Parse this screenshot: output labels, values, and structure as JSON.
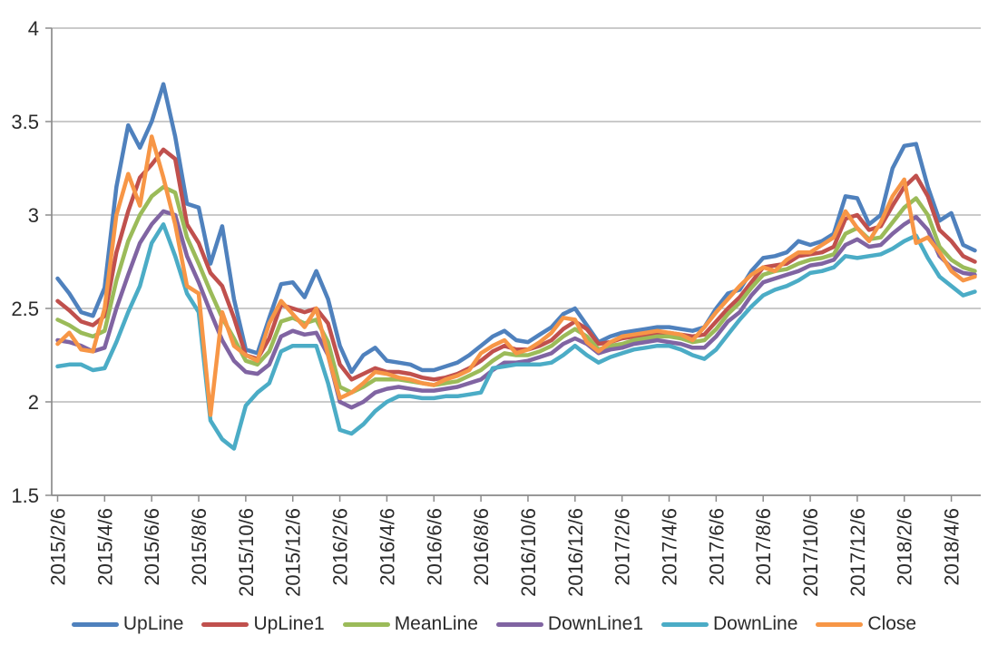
{
  "chart_data": {
    "type": "line",
    "title": "",
    "xlabel": "",
    "ylabel": "",
    "grid": "horizontal",
    "legend_position": "bottom",
    "y_axis": {
      "min": 1.5,
      "max": 4,
      "step": 0.5,
      "tick_labels": [
        "4",
        "3.5",
        "3",
        "2.5",
        "2",
        "1.5"
      ]
    },
    "x_tick_every": 4,
    "x_tick_labels": [
      "2015/2/6",
      "2015/4/6",
      "2015/6/6",
      "2015/8/6",
      "2015/10/6",
      "2015/12/6",
      "2016/2/6",
      "2016/4/6",
      "2016/6/6",
      "2016/8/6",
      "2016/10/6",
      "2016/12/6",
      "2017/2/6",
      "2017/4/6",
      "2017/6/6",
      "2017/8/6",
      "2017/10/6",
      "2017/12/6",
      "2018/2/6",
      "2018/4/6"
    ],
    "x": [
      "2015/2/6",
      "2015/2/21",
      "2015/3/6",
      "2015/3/21",
      "2015/4/6",
      "2015/4/21",
      "2015/5/6",
      "2015/5/21",
      "2015/6/6",
      "2015/6/21",
      "2015/7/6",
      "2015/7/21",
      "2015/8/6",
      "2015/8/21",
      "2015/9/6",
      "2015/9/21",
      "2015/10/6",
      "2015/10/21",
      "2015/11/6",
      "2015/11/21",
      "2015/12/6",
      "2015/12/21",
      "2016/1/6",
      "2016/1/21",
      "2016/2/6",
      "2016/2/21",
      "2016/3/6",
      "2016/3/21",
      "2016/4/6",
      "2016/4/21",
      "2016/5/6",
      "2016/5/21",
      "2016/6/6",
      "2016/6/21",
      "2016/7/6",
      "2016/7/21",
      "2016/8/6",
      "2016/8/21",
      "2016/9/6",
      "2016/9/21",
      "2016/10/6",
      "2016/10/21",
      "2016/11/6",
      "2016/11/21",
      "2016/12/6",
      "2016/12/21",
      "2017/1/6",
      "2017/1/21",
      "2017/2/6",
      "2017/2/21",
      "2017/3/6",
      "2017/3/21",
      "2017/4/6",
      "2017/4/21",
      "2017/5/6",
      "2017/5/21",
      "2017/6/6",
      "2017/6/21",
      "2017/7/6",
      "2017/7/21",
      "2017/8/6",
      "2017/8/21",
      "2017/9/6",
      "2017/9/21",
      "2017/10/6",
      "2017/10/21",
      "2017/11/6",
      "2017/11/21",
      "2017/12/6",
      "2017/12/21",
      "2018/1/6",
      "2018/1/21",
      "2018/2/6",
      "2018/2/21",
      "2018/3/6",
      "2018/3/21",
      "2018/4/6",
      "2018/4/21",
      "2018/5/6"
    ],
    "series": [
      {
        "name": "UpLine",
        "color": "#4F81BD",
        "values": [
          2.66,
          2.58,
          2.48,
          2.46,
          2.61,
          3.15,
          3.48,
          3.36,
          3.5,
          3.7,
          3.42,
          3.06,
          3.04,
          2.74,
          2.94,
          2.55,
          2.28,
          2.26,
          2.45,
          2.63,
          2.64,
          2.56,
          2.7,
          2.55,
          2.3,
          2.16,
          2.25,
          2.29,
          2.22,
          2.21,
          2.2,
          2.17,
          2.17,
          2.19,
          2.21,
          2.25,
          2.3,
          2.35,
          2.38,
          2.33,
          2.32,
          2.36,
          2.4,
          2.47,
          2.5,
          2.41,
          2.32,
          2.35,
          2.37,
          2.38,
          2.39,
          2.4,
          2.4,
          2.39,
          2.38,
          2.4,
          2.5,
          2.58,
          2.6,
          2.7,
          2.77,
          2.78,
          2.8,
          2.86,
          2.84,
          2.86,
          2.9,
          3.1,
          3.09,
          2.95,
          3.0,
          3.25,
          3.37,
          3.38,
          3.15,
          2.97,
          3.01,
          2.84,
          2.81
        ]
      },
      {
        "name": "UpLine1",
        "color": "#C0504D",
        "values": [
          2.54,
          2.49,
          2.43,
          2.41,
          2.46,
          2.8,
          3.02,
          3.2,
          3.27,
          3.35,
          3.3,
          2.95,
          2.85,
          2.69,
          2.62,
          2.45,
          2.25,
          2.23,
          2.34,
          2.52,
          2.5,
          2.48,
          2.5,
          2.42,
          2.2,
          2.12,
          2.15,
          2.18,
          2.16,
          2.16,
          2.15,
          2.13,
          2.12,
          2.13,
          2.15,
          2.18,
          2.22,
          2.27,
          2.3,
          2.28,
          2.28,
          2.3,
          2.33,
          2.39,
          2.43,
          2.39,
          2.31,
          2.32,
          2.34,
          2.35,
          2.36,
          2.37,
          2.37,
          2.36,
          2.35,
          2.36,
          2.43,
          2.5,
          2.56,
          2.64,
          2.72,
          2.73,
          2.74,
          2.78,
          2.79,
          2.8,
          2.83,
          2.98,
          3.0,
          2.92,
          2.94,
          3.05,
          3.15,
          3.21,
          3.1,
          2.92,
          2.86,
          2.78,
          2.75
        ]
      },
      {
        "name": "MeanLine",
        "color": "#9BBB59",
        "values": [
          2.44,
          2.41,
          2.37,
          2.35,
          2.38,
          2.65,
          2.86,
          3.0,
          3.1,
          3.15,
          3.12,
          2.88,
          2.74,
          2.59,
          2.45,
          2.34,
          2.22,
          2.2,
          2.27,
          2.43,
          2.45,
          2.42,
          2.44,
          2.32,
          2.08,
          2.05,
          2.08,
          2.12,
          2.12,
          2.12,
          2.11,
          2.1,
          2.09,
          2.1,
          2.11,
          2.14,
          2.17,
          2.22,
          2.26,
          2.25,
          2.25,
          2.27,
          2.3,
          2.35,
          2.39,
          2.35,
          2.28,
          2.3,
          2.31,
          2.33,
          2.34,
          2.35,
          2.35,
          2.34,
          2.32,
          2.33,
          2.39,
          2.47,
          2.53,
          2.61,
          2.68,
          2.7,
          2.71,
          2.74,
          2.76,
          2.77,
          2.79,
          2.9,
          2.93,
          2.87,
          2.88,
          2.96,
          3.04,
          3.09,
          3.0,
          2.83,
          2.76,
          2.72,
          2.7
        ]
      },
      {
        "name": "DownLine1",
        "color": "#8064A2",
        "values": [
          2.33,
          2.32,
          2.3,
          2.27,
          2.29,
          2.5,
          2.68,
          2.85,
          2.95,
          3.02,
          3.0,
          2.78,
          2.64,
          2.48,
          2.33,
          2.22,
          2.16,
          2.15,
          2.2,
          2.35,
          2.38,
          2.36,
          2.37,
          2.25,
          2.0,
          1.97,
          2.0,
          2.05,
          2.07,
          2.08,
          2.07,
          2.06,
          2.06,
          2.07,
          2.08,
          2.1,
          2.12,
          2.17,
          2.21,
          2.21,
          2.22,
          2.24,
          2.26,
          2.31,
          2.34,
          2.31,
          2.26,
          2.28,
          2.29,
          2.31,
          2.32,
          2.33,
          2.32,
          2.31,
          2.29,
          2.29,
          2.35,
          2.43,
          2.48,
          2.57,
          2.64,
          2.66,
          2.68,
          2.7,
          2.73,
          2.74,
          2.76,
          2.84,
          2.87,
          2.83,
          2.84,
          2.9,
          2.95,
          2.99,
          2.92,
          2.78,
          2.72,
          2.69,
          2.68
        ]
      },
      {
        "name": "DownLine",
        "color": "#4BACC6",
        "values": [
          2.19,
          2.2,
          2.2,
          2.17,
          2.18,
          2.32,
          2.48,
          2.62,
          2.85,
          2.95,
          2.78,
          2.58,
          2.48,
          1.9,
          1.8,
          1.75,
          1.98,
          2.05,
          2.1,
          2.27,
          2.3,
          2.3,
          2.3,
          2.1,
          1.85,
          1.83,
          1.88,
          1.95,
          2.0,
          2.03,
          2.03,
          2.02,
          2.02,
          2.03,
          2.03,
          2.04,
          2.05,
          2.18,
          2.19,
          2.2,
          2.2,
          2.2,
          2.21,
          2.25,
          2.3,
          2.25,
          2.21,
          2.24,
          2.26,
          2.28,
          2.29,
          2.3,
          2.3,
          2.28,
          2.25,
          2.23,
          2.28,
          2.36,
          2.44,
          2.51,
          2.57,
          2.6,
          2.62,
          2.65,
          2.69,
          2.7,
          2.72,
          2.78,
          2.77,
          2.78,
          2.79,
          2.82,
          2.86,
          2.89,
          2.77,
          2.67,
          2.62,
          2.57,
          2.59
        ]
      },
      {
        "name": "Close",
        "color": "#F79646",
        "values": [
          2.31,
          2.37,
          2.28,
          2.27,
          2.5,
          3.0,
          3.22,
          3.05,
          3.42,
          3.2,
          2.95,
          2.62,
          2.58,
          1.93,
          2.48,
          2.3,
          2.25,
          2.22,
          2.42,
          2.54,
          2.47,
          2.4,
          2.5,
          2.25,
          2.02,
          2.05,
          2.1,
          2.16,
          2.15,
          2.13,
          2.12,
          2.1,
          2.09,
          2.12,
          2.14,
          2.17,
          2.26,
          2.3,
          2.33,
          2.26,
          2.28,
          2.32,
          2.37,
          2.45,
          2.44,
          2.32,
          2.27,
          2.32,
          2.35,
          2.36,
          2.37,
          2.38,
          2.37,
          2.36,
          2.33,
          2.4,
          2.48,
          2.55,
          2.62,
          2.68,
          2.72,
          2.7,
          2.76,
          2.8,
          2.8,
          2.84,
          2.88,
          3.02,
          2.93,
          2.86,
          2.96,
          3.1,
          3.19,
          2.85,
          2.88,
          2.8,
          2.7,
          2.65,
          2.67
        ]
      }
    ],
    "legend": [
      "UpLine",
      "UpLine1",
      "MeanLine",
      "DownLine1",
      "DownLine",
      "Close"
    ]
  },
  "styles": {
    "grid_color": "#ababab",
    "axis_color": "#8c8c8c",
    "label_color": "#2b2b2b",
    "background": "#ffffff",
    "line_width": 4.5
  }
}
